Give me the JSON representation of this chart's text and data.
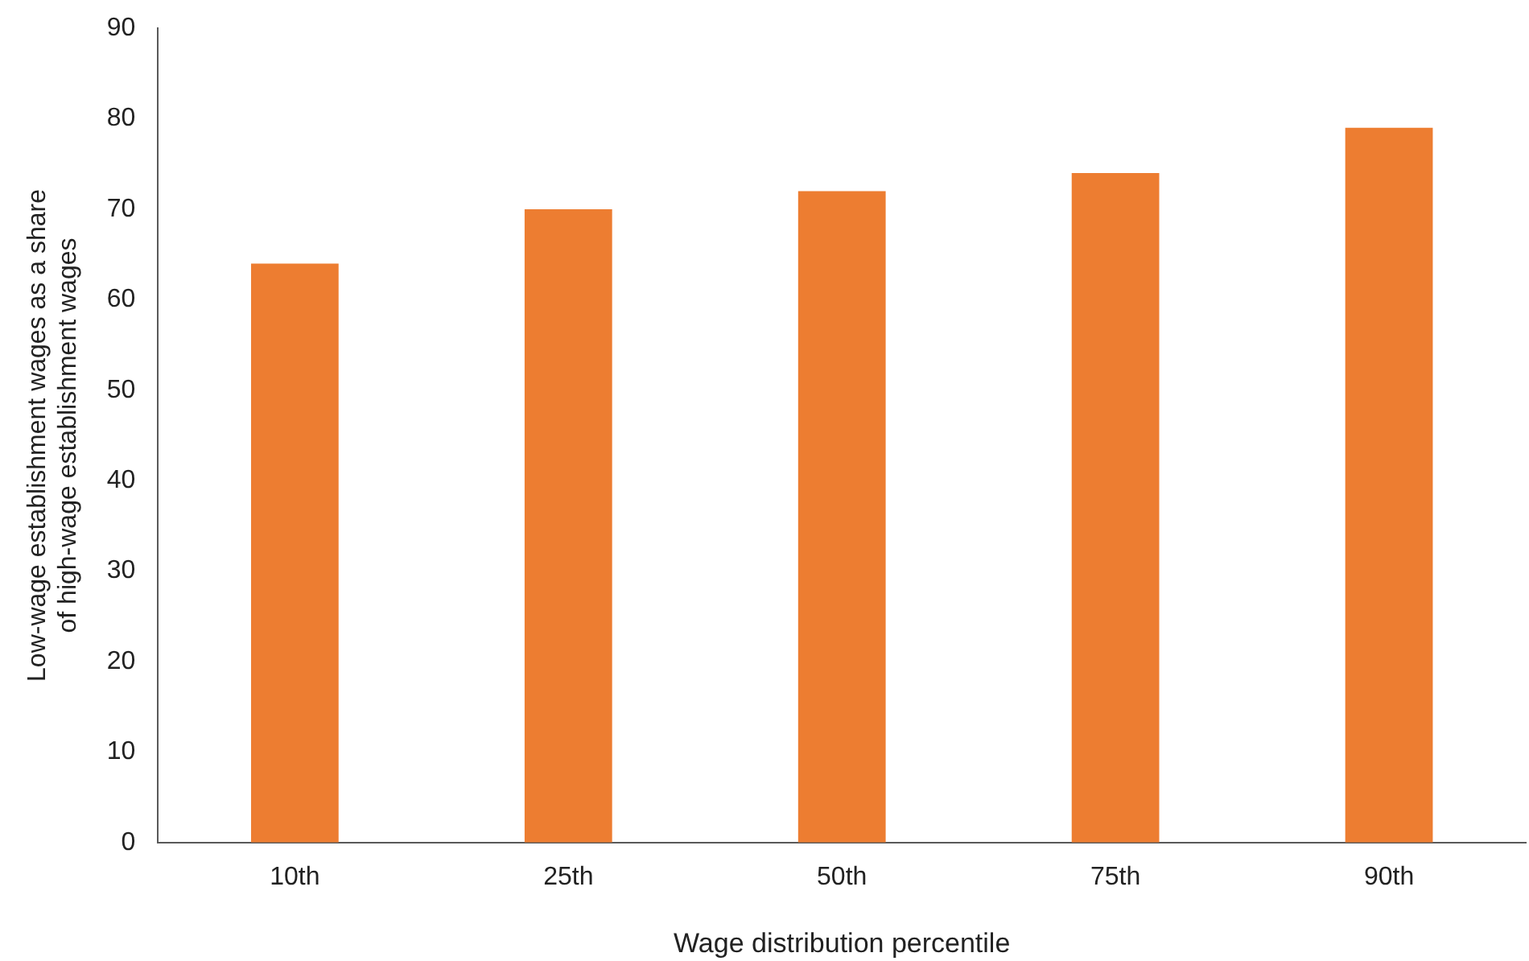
{
  "chart_data": {
    "type": "bar",
    "xlabel": "Wage distribution percentile",
    "ylabel": "Low-wage establishment wages as a share\nof high-wage establishment wages",
    "categories": [
      "10th",
      "25th",
      "50th",
      "75th",
      "90th"
    ],
    "values": [
      64,
      70,
      72,
      74,
      79
    ],
    "color": "#ed7d31",
    "ylim": [
      0,
      90
    ],
    "yticks": [
      0,
      10,
      20,
      30,
      40,
      50,
      60,
      70,
      80,
      90
    ],
    "grid": false,
    "legend": false
  }
}
